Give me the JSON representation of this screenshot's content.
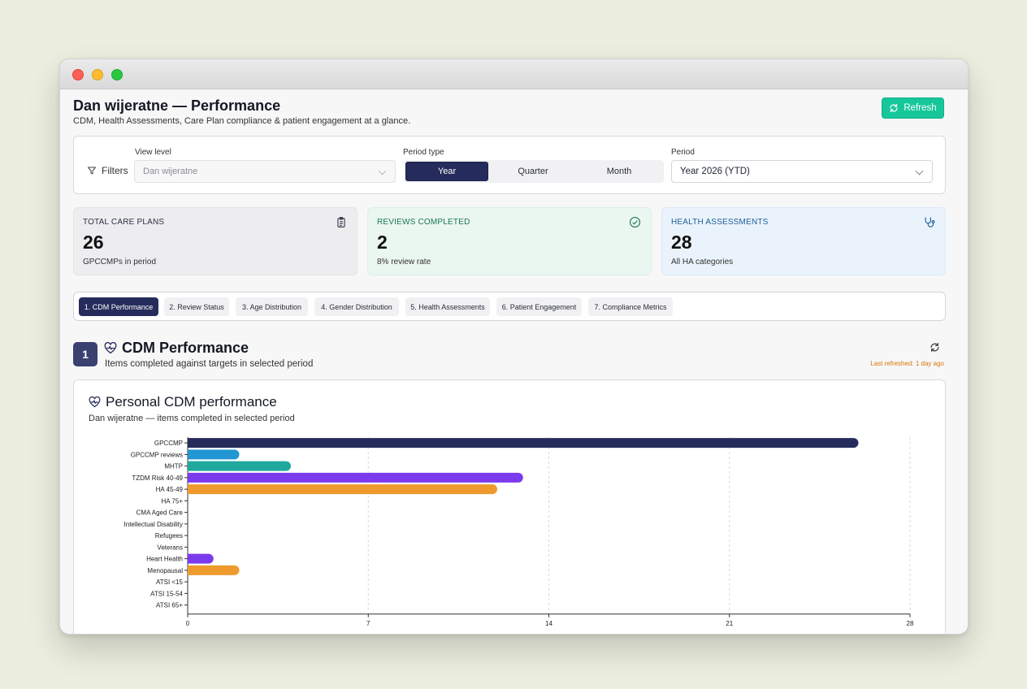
{
  "header": {
    "title": "Dan wijeratne — Performance",
    "subtitle": "CDM, Health Assessments, Care Plan compliance & patient engagement at a glance.",
    "refresh_label": "Refresh"
  },
  "filters": {
    "label": "Filters",
    "view_level_label": "View level",
    "view_level_value": "Dan wijeratne",
    "period_type_label": "Period type",
    "period_types": [
      "Year",
      "Quarter",
      "Month"
    ],
    "period_type_selected": "Year",
    "period_label": "Period",
    "period_value": "Year 2026 (YTD)"
  },
  "stats": [
    {
      "label": "TOTAL CARE PLANS",
      "value": "26",
      "sub": "GPCCMPs in period",
      "icon": "clipboard-icon"
    },
    {
      "label": "REVIEWS COMPLETED",
      "value": "2",
      "sub": "8% review rate",
      "icon": "check-circle-icon"
    },
    {
      "label": "HEALTH ASSESSMENTS",
      "value": "28",
      "sub": "All HA categories",
      "icon": "stethoscope-icon"
    }
  ],
  "tabs": [
    {
      "label": "1. CDM Performance",
      "active": true
    },
    {
      "label": "2. Review Status"
    },
    {
      "label": "3. Age Distribution"
    },
    {
      "label": "4. Gender Distribution"
    },
    {
      "label": "5. Health Assessments"
    },
    {
      "label": "6. Patient Engagement"
    },
    {
      "label": "7. Compliance Metrics"
    }
  ],
  "section": {
    "number": "1",
    "title": "CDM Performance",
    "subtitle": "Items completed against targets in selected period",
    "last_refreshed": "Last refreshed: 1 day ago"
  },
  "chart_card": {
    "title": "Personal CDM performance",
    "subtitle": "Dan wijeratne — items completed in selected period"
  },
  "colors": {
    "navy": "#252c5c",
    "accent_green": "#16c79a",
    "orange_text": "#d97706"
  },
  "chart_data": {
    "type": "bar",
    "orientation": "horizontal",
    "categories": [
      "GPCCMP",
      "GPCCMP reviews",
      "MHTP",
      "TZDM Risk 40-49",
      "HA 45-49",
      "HA 75+",
      "CMA Aged Care",
      "Intellectual Disability",
      "Refugees",
      "Veterans",
      "Heart Health",
      "Menopausal",
      "ATSI <15",
      "ATSI 15-54",
      "ATSI 65+"
    ],
    "values": [
      26,
      2,
      4,
      13,
      12,
      0,
      0,
      0,
      0,
      0,
      1,
      2,
      0,
      0,
      0
    ],
    "bar_colors": [
      "#252c5c",
      "#2196d3",
      "#1fa89e",
      "#7c3aed",
      "#ee9a2c",
      "#7c3aed",
      "#ee9a2c",
      "#7c3aed",
      "#ee9a2c",
      "#7c3aed",
      "#7c3aed",
      "#ee9a2c",
      "#7c3aed",
      "#ee9a2c",
      "#7c3aed"
    ],
    "xlim": [
      0,
      28
    ],
    "xticks": [
      0,
      7,
      14,
      21,
      28
    ],
    "grid": "vertical dashed",
    "xlabel": "",
    "ylabel": ""
  }
}
